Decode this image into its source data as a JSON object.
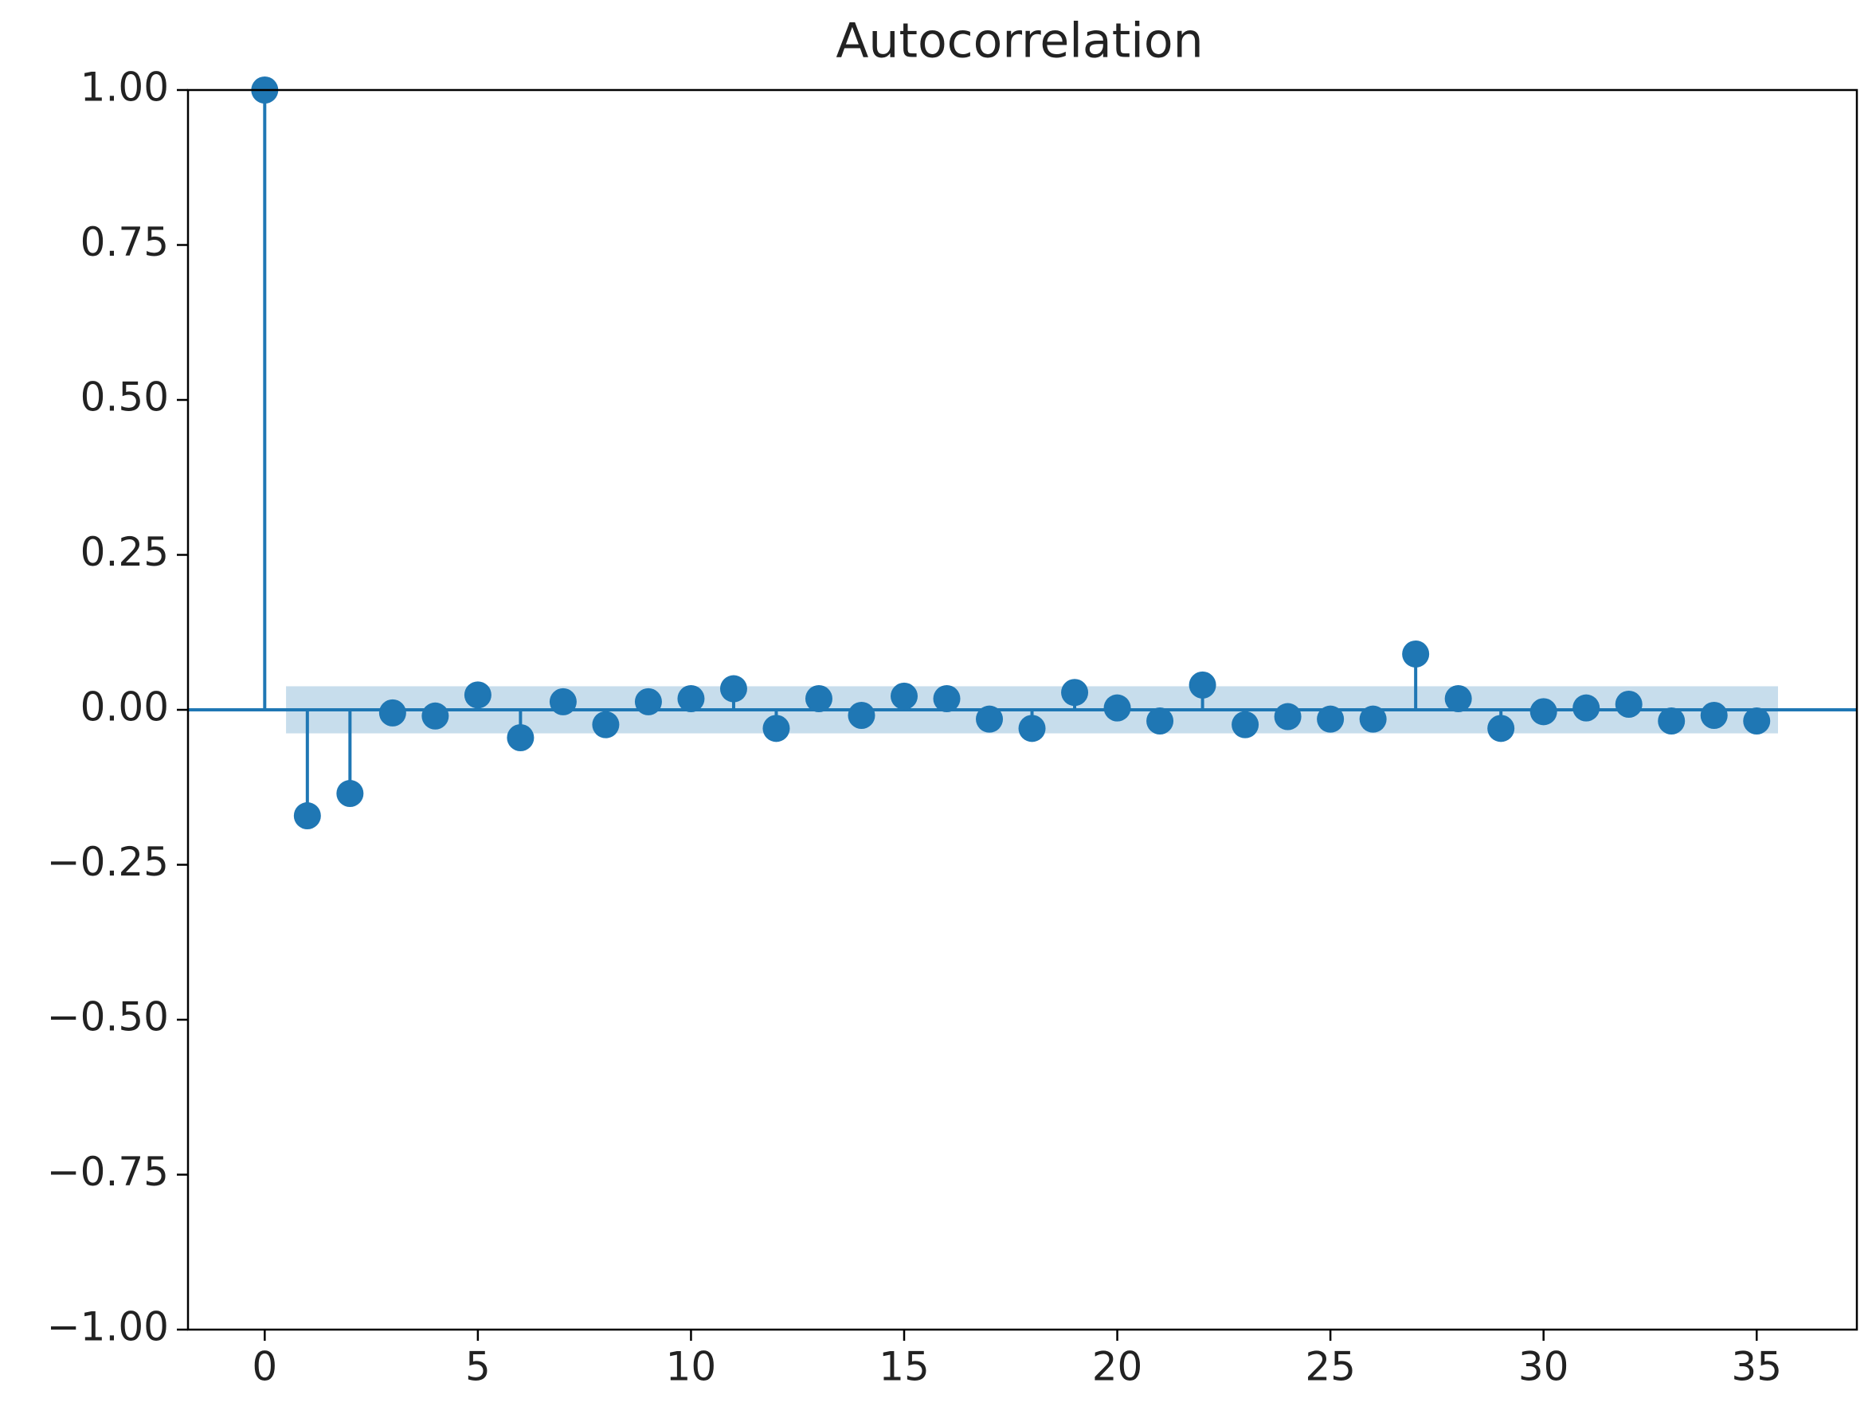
{
  "chart_data": {
    "type": "stem",
    "title": "Autocorrelation",
    "color": "#1f77b4",
    "x": [
      0,
      1,
      2,
      3,
      4,
      5,
      6,
      7,
      8,
      9,
      10,
      11,
      12,
      13,
      14,
      15,
      16,
      17,
      18,
      19,
      20,
      21,
      22,
      23,
      24,
      25,
      26,
      27,
      28,
      29,
      30,
      31,
      32,
      33,
      34,
      35
    ],
    "values": [
      1.0,
      -0.171,
      -0.135,
      -0.005,
      -0.01,
      0.024,
      -0.045,
      0.013,
      -0.024,
      0.013,
      0.018,
      0.034,
      -0.03,
      0.018,
      -0.009,
      0.022,
      0.018,
      -0.015,
      -0.03,
      0.028,
      0.003,
      -0.018,
      0.04,
      -0.024,
      -0.011,
      -0.015,
      -0.015,
      0.09,
      0.018,
      -0.03,
      -0.003,
      0.003,
      0.009,
      -0.018,
      -0.009,
      -0.018
    ],
    "confidence_band": {
      "x": [
        0.5,
        35.5
      ],
      "upper": 0.038,
      "lower": -0.038
    },
    "xlim": [
      -1.8,
      37.35
    ],
    "ylim": [
      -1,
      1
    ],
    "xticks": [
      0,
      5,
      10,
      15,
      20,
      25,
      30,
      35
    ],
    "yticks": [
      {
        "value": -1,
        "label": "−1.00"
      },
      {
        "value": -0.75,
        "label": "−0.75"
      },
      {
        "value": -0.5,
        "label": "−0.50"
      },
      {
        "value": -0.25,
        "label": "−0.25"
      },
      {
        "value": 0,
        "label": "0.00"
      },
      {
        "value": 0.25,
        "label": "0.25"
      },
      {
        "value": 0.5,
        "label": "0.50"
      },
      {
        "value": 0.75,
        "label": "0.75"
      },
      {
        "value": 1,
        "label": "1.00"
      }
    ]
  }
}
